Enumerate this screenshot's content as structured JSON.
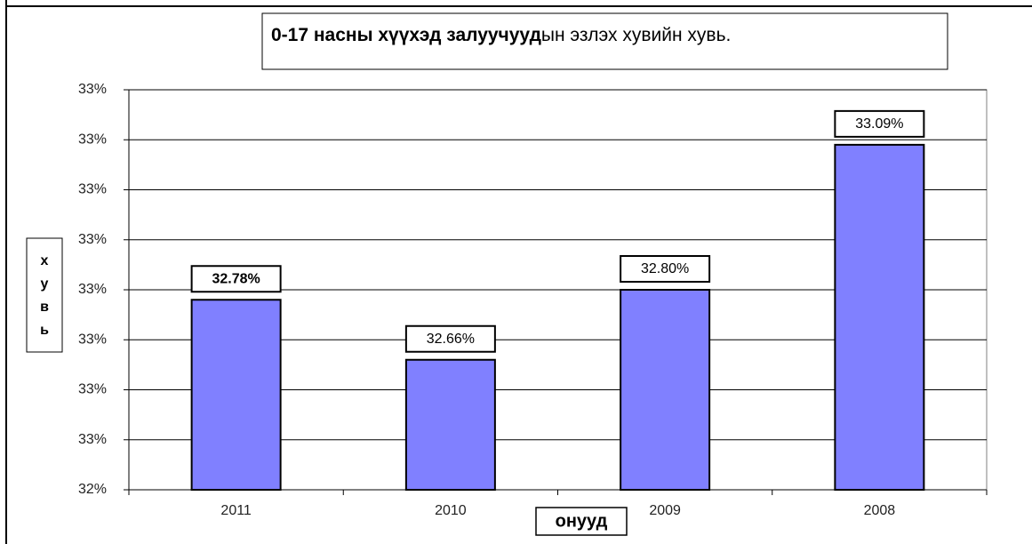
{
  "chart_data": {
    "type": "bar",
    "title": {
      "bold": "0-17 насны хүүхэд залуучууд",
      "rest": "ын эзлэх хувийн хувь."
    },
    "xlabel": "онууд",
    "ylabel": "хувь",
    "categories": [
      "2011",
      "2010",
      "2009",
      "2008"
    ],
    "values": [
      32.78,
      32.66,
      32.8,
      33.09
    ],
    "value_labels": [
      "32.78%",
      "32.66%",
      "32.80%",
      "33.09%"
    ],
    "color": "#8080ff",
    "ylim": [
      32.4,
      33.2
    ],
    "yticks": [
      {
        "value": 32.4,
        "label": "32%"
      },
      {
        "value": 32.5,
        "label": "33%"
      },
      {
        "value": 32.6,
        "label": "33%"
      },
      {
        "value": 32.7,
        "label": "33%"
      },
      {
        "value": 32.8,
        "label": "33%"
      },
      {
        "value": 32.9,
        "label": "33%"
      },
      {
        "value": 33.0,
        "label": "33%"
      },
      {
        "value": 33.1,
        "label": "33%"
      },
      {
        "value": 33.2,
        "label": "33%"
      }
    ],
    "grid": true
  }
}
